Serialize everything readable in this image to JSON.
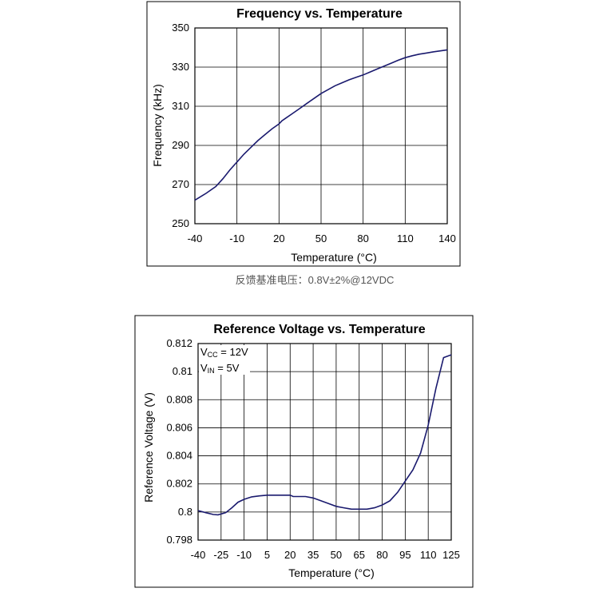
{
  "caption": "反馈基准电压：0.8V±2%@12VDC",
  "chart_data": [
    {
      "type": "line",
      "title": "Frequency vs. Temperature",
      "xlabel": "Temperature (°C)",
      "ylabel": "Frequency (kHz)",
      "xlim": [
        -40,
        140
      ],
      "ylim": [
        250,
        350
      ],
      "xticks": [
        -40,
        -10,
        20,
        50,
        80,
        110,
        140
      ],
      "yticks": [
        250,
        270,
        290,
        310,
        330,
        350
      ],
      "grid": true,
      "series": [
        {
          "color": "#1a1a6e",
          "x": [
            -40,
            -32,
            -25,
            -20,
            -15,
            -10,
            -5,
            0,
            5,
            10,
            15,
            20,
            22,
            25,
            30,
            35,
            40,
            45,
            50,
            55,
            60,
            65,
            70,
            75,
            80,
            85,
            90,
            95,
            100,
            105,
            110,
            115,
            120,
            125,
            130,
            135,
            140
          ],
          "values": [
            262,
            265.5,
            269,
            273,
            277.5,
            281.5,
            285.5,
            289,
            292.5,
            295.5,
            298.5,
            301,
            302.5,
            304,
            306.5,
            309,
            311.5,
            314,
            316.5,
            318.5,
            320.5,
            322,
            323.5,
            324.8,
            326,
            327.5,
            329,
            330.5,
            332,
            333.5,
            334.8,
            335.8,
            336.6,
            337.2,
            337.8,
            338.3,
            338.8
          ]
        }
      ]
    },
    {
      "type": "line",
      "title": "Reference Voltage vs. Temperature",
      "xlabel": "Temperature (°C)",
      "ylabel": "Reference Voltage (V)",
      "xlim": [
        -40,
        125
      ],
      "ylim": [
        0.798,
        0.812
      ],
      "xticks": [
        -40,
        -25,
        -10,
        5,
        20,
        35,
        50,
        65,
        80,
        95,
        110,
        125
      ],
      "yticks": [
        0.798,
        0.8,
        0.802,
        0.804,
        0.806,
        0.808,
        0.81,
        0.812
      ],
      "ytick_labels": [
        "0.798",
        "0.8",
        "0.802",
        "0.804",
        "0.806",
        "0.808",
        "0.81",
        "0.812"
      ],
      "grid": true,
      "annotations": [
        {
          "main": "V",
          "sub": "CC",
          "rest": " = 12V"
        },
        {
          "main": "V",
          "sub": "IN",
          "rest": " = 5V"
        }
      ],
      "series": [
        {
          "color": "#1a1a6e",
          "x": [
            -40,
            -35,
            -30,
            -27,
            -22,
            -18,
            -14,
            -10,
            -5,
            0,
            5,
            10,
            15,
            20,
            22,
            25,
            30,
            35,
            40,
            45,
            50,
            55,
            60,
            65,
            70,
            75,
            80,
            85,
            90,
            95,
            100,
            105,
            110,
            115,
            120,
            125
          ],
          "values": [
            0.8001,
            0.79995,
            0.79982,
            0.7998,
            0.79995,
            0.8003,
            0.8007,
            0.8009,
            0.80108,
            0.80115,
            0.8012,
            0.8012,
            0.8012,
            0.8012,
            0.8011,
            0.8011,
            0.8011,
            0.801,
            0.8008,
            0.8006,
            0.8004,
            0.8003,
            0.8002,
            0.8002,
            0.8002,
            0.8003,
            0.8005,
            0.8008,
            0.8014,
            0.8022,
            0.803,
            0.8042,
            0.8062,
            0.8088,
            0.811,
            0.8112
          ]
        }
      ]
    }
  ]
}
